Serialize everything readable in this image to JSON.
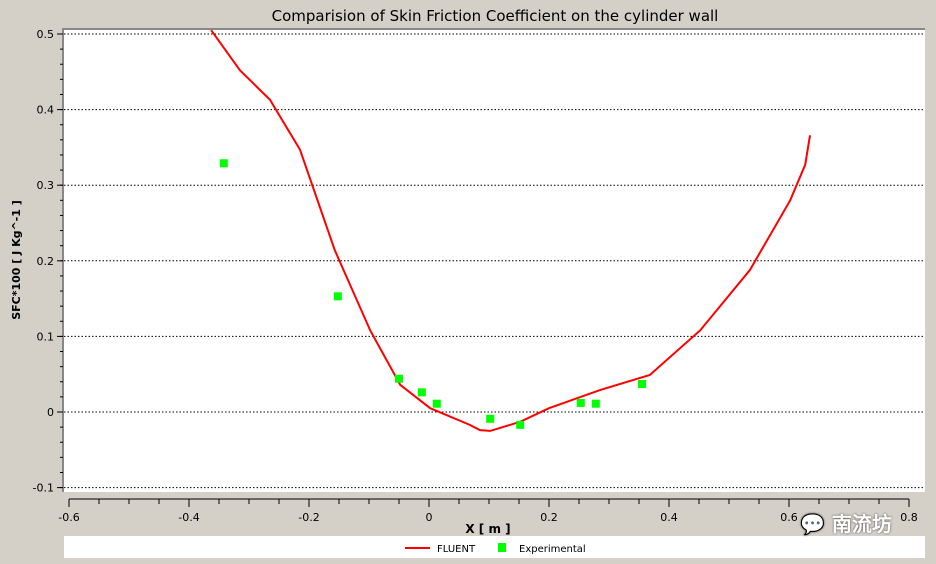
{
  "chart_data": {
    "type": "line",
    "title": "Comparision of Skin Friction Coefficient on the cylinder wall",
    "xlabel": "X [ m ]",
    "ylabel": "SFC*100 [ J Kg^-1 ]",
    "xlim": [
      -0.6,
      0.8
    ],
    "ylim": [
      -0.1,
      0.5
    ],
    "xticks": [
      "-0.6",
      "-0.4",
      "-0.2",
      "0",
      "0.2",
      "0.4",
      "0.6",
      "0.8"
    ],
    "yticks": [
      "-0.1",
      "0",
      "0.1",
      "0.2",
      "0.3",
      "0.4",
      "0.5"
    ],
    "grid": "horizontal dotted",
    "legend_position": "bottom",
    "series": [
      {
        "name": "FLUENT",
        "kind": "line",
        "color": "#ff0000",
        "x": [
          -0.363,
          -0.315,
          -0.265,
          -0.215,
          -0.157,
          -0.098,
          -0.048,
          0.002,
          0.068,
          0.085,
          0.102,
          0.152,
          0.2,
          0.285,
          0.368,
          0.452,
          0.535,
          0.602,
          0.627,
          0.635
        ],
        "y": [
          0.505,
          0.452,
          0.413,
          0.347,
          0.214,
          0.108,
          0.036,
          0.005,
          -0.017,
          -0.024,
          -0.025,
          -0.013,
          0.005,
          0.029,
          0.049,
          0.108,
          0.188,
          0.28,
          0.327,
          0.366
        ]
      },
      {
        "name": "Experimental",
        "kind": "scatter",
        "color": "#00ff00",
        "x": [
          -0.342,
          -0.152,
          -0.05,
          -0.012,
          0.013,
          0.102,
          0.152,
          0.253,
          0.278,
          0.355
        ],
        "y": [
          0.329,
          0.153,
          0.044,
          0.026,
          0.011,
          -0.009,
          -0.017,
          0.012,
          0.011,
          0.037
        ]
      }
    ]
  },
  "watermark": "南流坊"
}
